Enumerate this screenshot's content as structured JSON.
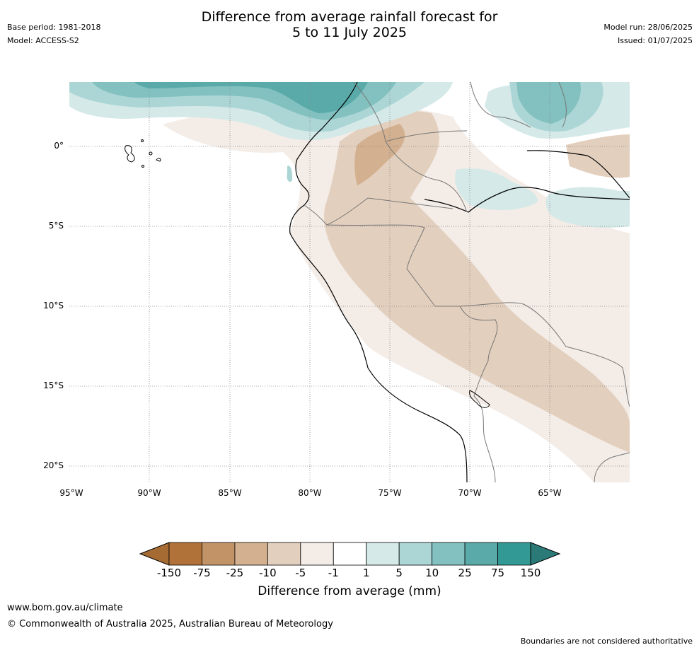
{
  "header": {
    "title_line1": "Difference from average rainfall forecast for",
    "title_line2": "5 to 11 July 2025",
    "base_period": "Base period: 1981-2018",
    "model": "Model: ACCESS-S2",
    "model_run": "Model run: 28/06/2025",
    "issued": "Issued: 01/07/2025"
  },
  "map": {
    "lat_labels": [
      "0°",
      "5°S",
      "10°S",
      "15°S",
      "20°S"
    ],
    "lon_labels": [
      "95°W",
      "90°W",
      "85°W",
      "80°W",
      "75°W",
      "70°W",
      "65°W"
    ],
    "colors": {
      "very_dry": "#a56b33",
      "dry_75": "#b07238",
      "dry_25": "#c29367",
      "dry_10": "#d3b08f",
      "dry_5": "#e3cfbd",
      "dry_1": "#f3ece7",
      "neutral": "#ffffff",
      "wet_1": "#d4e9e8",
      "wet_5": "#abd6d5",
      "wet_10": "#82c1bf",
      "wet_25": "#59aaa9",
      "wet_75": "#329994",
      "very_wet": "#2b7a77"
    }
  },
  "colorbar": {
    "title": "Difference from average (mm)",
    "ticks": [
      "-150",
      "-75",
      "-25",
      "-10",
      "-5",
      "-1",
      "1",
      "5",
      "10",
      "25",
      "75",
      "150"
    ],
    "segment_colors": [
      "#b07238",
      "#c29367",
      "#d3b08f",
      "#e3cfbd",
      "#f3ece7",
      "#ffffff",
      "#d4e9e8",
      "#abd6d5",
      "#82c1bf",
      "#59aaa9",
      "#329994"
    ],
    "left_arrow_color": "#a56b33",
    "right_arrow_color": "#2b7a77"
  },
  "footer": {
    "url": "www.bom.gov.au/climate",
    "copyright": "© Commonwealth of Australia 2025, Australian Bureau of Meteorology",
    "disclaimer": "Boundaries are not considered authoritative"
  }
}
